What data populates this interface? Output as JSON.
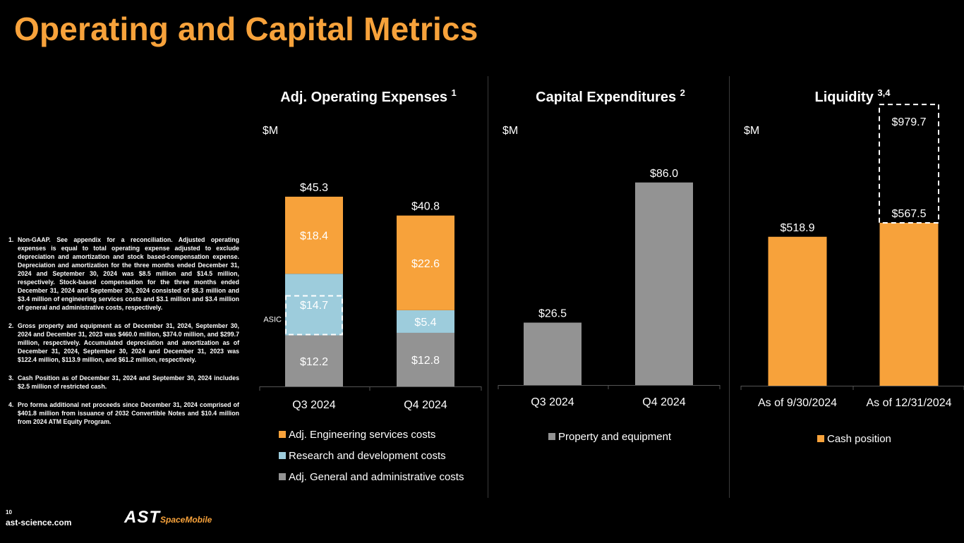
{
  "title": "Operating and Capital Metrics",
  "footnotes": [
    {
      "num": "1.",
      "text": "Non-GAAP. See appendix for a reconciliation. Adjusted operating expenses is equal to total operating expense adjusted to exclude depreciation and amortization and stock based-compensation expense. Depreciation and amortization for the three months ended December 31, 2024 and September 30, 2024 was $8.5 million and $14.5 million, respectively. Stock-based compensation for the three months ended December 31, 2024 and September 30, 2024 consisted of $8.3 million and $3.4 million of engineering services costs and $3.1 million and $3.4 million of general and administrative costs, respectively."
    },
    {
      "num": "2.",
      "text": "Gross property and equipment as of December 31, 2024, September 30, 2024 and December 31, 2023 was $460.0 million, $374.0 million, and $299.7 million, respectively. Accumulated depreciation and amortization as of December 31, 2024, September 30, 2024 and December 31, 2023 was $122.4 million, $113.9 million, and $61.2 million, respectively."
    },
    {
      "num": "3.",
      "text": "Cash Position as of December 31, 2024 and September 30, 2024 includes $2.5 million of restricted cash."
    },
    {
      "num": "4.",
      "text": "Pro forma additional net proceeds since December 31, 2024 comprised of $401.8 million from issuance of 2032 Convertible Notes and $10.4 million from 2024 ATM Equity Program."
    }
  ],
  "page_number": "10",
  "website": "ast-science.com",
  "logo": {
    "main": "AST",
    "sub": "SpaceMobile"
  },
  "colors": {
    "orange": "#F7A23B",
    "blue": "#9DCCDC",
    "gray": "#939393",
    "text": "#ffffff"
  },
  "chart_data": [
    {
      "type": "bar",
      "stacked": true,
      "title": "Adj. Operating Expenses",
      "title_sup": "1",
      "unit_label": "$M",
      "categories": [
        "Q3 2024",
        "Q4 2024"
      ],
      "series": [
        {
          "name": "Adj. General and administrative costs",
          "color": "#939393",
          "values": [
            12.2,
            12.8
          ],
          "labels": [
            "$12.2",
            "$12.8"
          ]
        },
        {
          "name": "Research and development costs",
          "color": "#9DCCDC",
          "values": [
            14.7,
            5.4
          ],
          "labels": [
            "$14.7",
            "$5.4"
          ]
        },
        {
          "name": "Adj. Engineering services costs",
          "color": "#F7A23B",
          "values": [
            18.4,
            22.6
          ],
          "labels": [
            "$18.4",
            "$22.6"
          ]
        }
      ],
      "totals": [
        45.3,
        40.8
      ],
      "total_labels": [
        "$45.3",
        "$40.8"
      ],
      "annotation": {
        "label": "ASIC",
        "category": "Q3 2024",
        "series": "Research and development costs"
      },
      "legend_order": [
        "Adj. Engineering services costs",
        "Research and development costs",
        "Adj. General and administrative costs"
      ],
      "legend_position": "bottom"
    },
    {
      "type": "bar",
      "title": "Capital Expenditures",
      "title_sup": "2",
      "unit_label": "$M",
      "categories": [
        "Q3 2024",
        "Q4 2024"
      ],
      "series": [
        {
          "name": "Property and equipment",
          "color": "#939393",
          "values": [
            26.5,
            86.0
          ],
          "labels": [
            "$26.5",
            "$86.0"
          ]
        }
      ],
      "legend_position": "bottom"
    },
    {
      "type": "bar",
      "title": "Liquidity",
      "title_sup": "3,4",
      "unit_label": "$M",
      "categories": [
        "As of 9/30/2024",
        "As of 12/31/2024"
      ],
      "series": [
        {
          "name": "Cash position",
          "color": "#F7A23B",
          "values": [
            518.9,
            567.5
          ],
          "labels": [
            "$518.9",
            "$567.5"
          ]
        }
      ],
      "pro_forma": {
        "category": "As of 12/31/2024",
        "value": 979.7,
        "label": "$979.7",
        "style": "dashed"
      },
      "legend_position": "bottom"
    }
  ]
}
